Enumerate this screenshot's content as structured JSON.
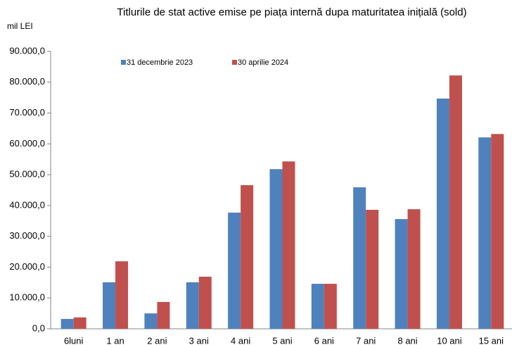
{
  "chart_data": {
    "type": "bar",
    "title": "Titlurile de stat active emise pe piața internă dupa maturitatea inițială (sold)",
    "y_label": "mil LEI",
    "categories": [
      "6luni",
      "1 an",
      "2 ani",
      "3 ani",
      "4 ani",
      "5 ani",
      "6 ani",
      "7 ani",
      "8 ani",
      "10 ani",
      "15 ani"
    ],
    "series": [
      {
        "name": "31 decembrie 2023",
        "color": "#4f81bd",
        "values": [
          3200,
          15100,
          5000,
          15100,
          37700,
          51800,
          14600,
          45900,
          35600,
          74700,
          62100
        ]
      },
      {
        "name": "30 aprilie 2024",
        "color": "#c0504d",
        "values": [
          3700,
          21900,
          8700,
          16900,
          46600,
          54300,
          14600,
          38600,
          38800,
          82200,
          63200
        ]
      }
    ],
    "ylim": [
      0,
      90000
    ],
    "yticks": [
      {
        "value": 0,
        "label": "0,0"
      },
      {
        "value": 10000,
        "label": "10.000,0"
      },
      {
        "value": 20000,
        "label": "20.000,0"
      },
      {
        "value": 30000,
        "label": "30.000,0"
      },
      {
        "value": 40000,
        "label": "40.000,0"
      },
      {
        "value": 50000,
        "label": "50.000,0"
      },
      {
        "value": 60000,
        "label": "60.000,0"
      },
      {
        "value": 70000,
        "label": "70.000,0"
      },
      {
        "value": 80000,
        "label": "80.000,0"
      },
      {
        "value": 90000,
        "label": "90.000,0"
      }
    ],
    "grid": false,
    "legend": "top"
  }
}
